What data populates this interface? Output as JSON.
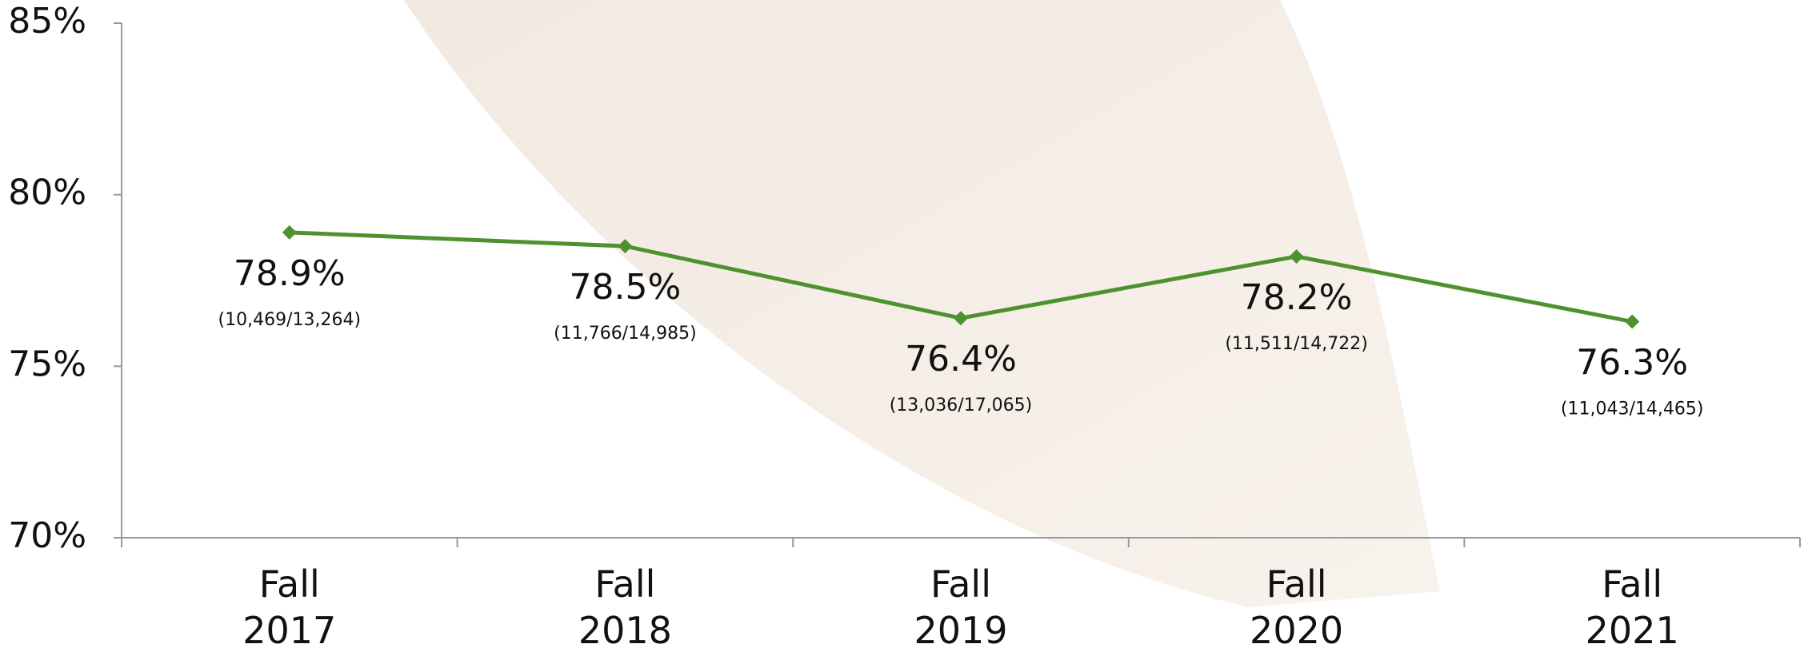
{
  "chart_data": {
    "type": "line",
    "categories": [
      "Fall 2017",
      "Fall 2018",
      "Fall 2019",
      "Fall 2020",
      "Fall 2021"
    ],
    "series": [
      {
        "color": "#4e9230",
        "values": [
          78.9,
          78.5,
          76.4,
          78.2,
          76.3
        ],
        "value_labels": [
          "78.9%",
          "78.5%",
          "76.4%",
          "78.2%",
          "76.3%"
        ]
      }
    ],
    "annotations": [
      "(10,469/13,264)",
      "(11,766/14,985)",
      "(13,036/17,065)",
      "(11,511/14,722)",
      "(11,043/14,465)"
    ],
    "ylim": [
      70,
      85
    ],
    "yticks": [
      {
        "value": 70,
        "label": "70%"
      },
      {
        "value": 75,
        "label": "75%"
      },
      {
        "value": 80,
        "label": "80%"
      },
      {
        "value": 85,
        "label": "85%"
      }
    ],
    "grid": false
  }
}
